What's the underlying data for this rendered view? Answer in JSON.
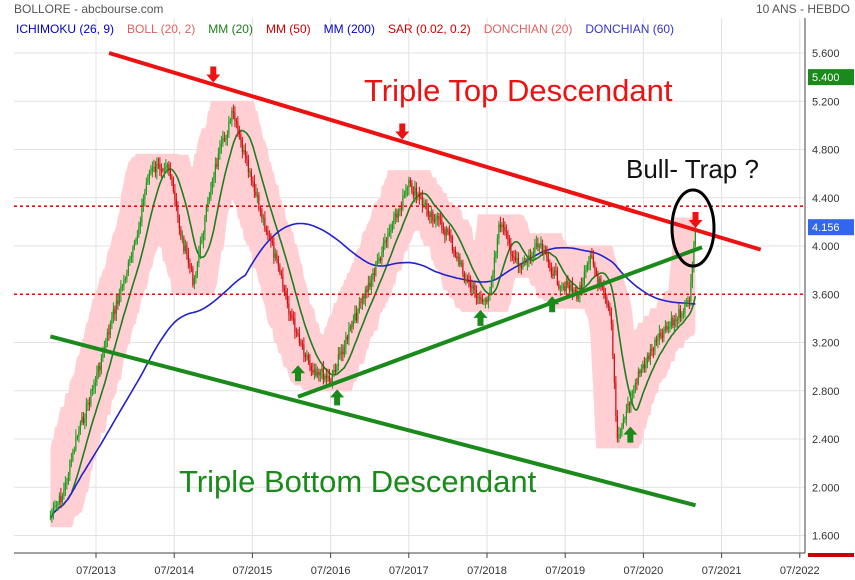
{
  "header": {
    "title": "BOLLORE - abcbourse.com",
    "period": "10 ANS - HEBDO"
  },
  "legend": [
    {
      "label": "ICHIMOKU (26, 9)",
      "color": "#0000cc"
    },
    {
      "label": "BOLL (20, 2)",
      "color": "#e06060"
    },
    {
      "label": "MM (20)",
      "color": "#1e7d1e"
    },
    {
      "label": "MM (50)",
      "color": "#d00000"
    },
    {
      "label": "MM (200)",
      "color": "#0000cc"
    },
    {
      "label": "SAR (0.02, 0.2)",
      "color": "#d00000"
    },
    {
      "label": "DONCHIAN (20)",
      "color": "#e06060"
    },
    {
      "label": "DONCHIAN (60)",
      "color": "#3333cc"
    }
  ],
  "price_tags": [
    {
      "label": "5.400",
      "value": 5.4,
      "bg": "#1a8a1a"
    },
    {
      "label": "4.156",
      "value": 4.156,
      "bg": "#3366ee"
    }
  ],
  "annotations": {
    "top": "Triple Top Descendant",
    "bottom": "Triple Bottom Descendant",
    "trap": "Bull- Trap ?"
  },
  "chart_data": {
    "type": "candlestick",
    "x_ticks": [
      "07/2013",
      "07/2014",
      "07/2015",
      "07/2016",
      "07/2017",
      "07/2018",
      "07/2019",
      "07/2020",
      "07/2021",
      "07/2022"
    ],
    "y_ticks": [
      "1.600",
      "2.000",
      "2.400",
      "2.800",
      "3.200",
      "3.600",
      "4.000",
      "4.400",
      "4.800",
      "5.200",
      "5.600"
    ],
    "ylim": [
      1.6,
      5.6
    ],
    "price_path": [
      [
        "2012-12",
        1.75
      ],
      [
        "2013-02",
        1.95
      ],
      [
        "2013-04",
        2.4
      ],
      [
        "2013-07",
        2.9
      ],
      [
        "2013-10",
        3.5
      ],
      [
        "2014-01",
        4.0
      ],
      [
        "2014-03",
        4.6
      ],
      [
        "2014-06",
        4.7
      ],
      [
        "2014-08",
        4.1
      ],
      [
        "2014-10",
        3.7
      ],
      [
        "2015-01",
        4.6
      ],
      [
        "2015-04",
        5.1
      ],
      [
        "2015-07",
        4.5
      ],
      [
        "2015-10",
        4.0
      ],
      [
        "2016-01",
        3.4
      ],
      [
        "2016-04",
        3.0
      ],
      [
        "2016-07",
        2.9
      ],
      [
        "2016-10",
        3.3
      ],
      [
        "2017-01",
        3.7
      ],
      [
        "2017-04",
        4.1
      ],
      [
        "2017-07",
        4.5
      ],
      [
        "2017-10",
        4.3
      ],
      [
        "2018-01",
        4.1
      ],
      [
        "2018-04",
        3.7
      ],
      [
        "2018-07",
        3.5
      ],
      [
        "2018-09",
        4.2
      ],
      [
        "2018-12",
        3.8
      ],
      [
        "2019-03",
        4.0
      ],
      [
        "2019-06",
        3.7
      ],
      [
        "2019-09",
        3.6
      ],
      [
        "2019-11",
        3.9
      ],
      [
        "2020-02",
        3.4
      ],
      [
        "2020-03",
        2.4
      ],
      [
        "2020-06",
        2.9
      ],
      [
        "2020-09",
        3.2
      ],
      [
        "2020-12",
        3.4
      ],
      [
        "2021-02",
        3.55
      ],
      [
        "2021-03",
        4.156
      ]
    ],
    "horizontal_levels": [
      4.33,
      3.6
    ],
    "trendlines": {
      "triple_top": [
        [
          "2013-09",
          5.6
        ],
        [
          "2022-01",
          3.97
        ]
      ],
      "triple_bottom": [
        [
          "2012-12",
          3.25
        ],
        [
          "2021-03",
          1.85
        ]
      ],
      "support": [
        [
          "2016-02",
          2.75
        ],
        [
          "2021-04",
          3.99
        ]
      ]
    },
    "peaks": [
      "2015-01",
      "2017-06",
      "2021-03"
    ],
    "troughs": [
      "2016-02",
      "2016-08",
      "2018-06",
      "2019-05",
      "2020-05"
    ]
  }
}
